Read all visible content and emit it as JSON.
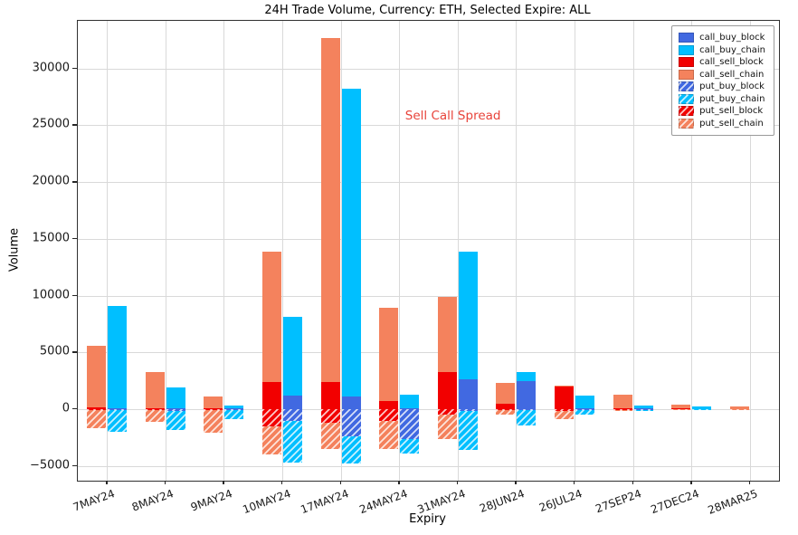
{
  "chart_data": {
    "type": "bar",
    "stacked": true,
    "title": "24H Trade Volume, Currency: ETH, Selected Expire: ALL",
    "xlabel": "Expiry",
    "ylabel": "Volume",
    "categories": [
      "7MAY24",
      "8MAY24",
      "9MAY24",
      "10MAY24",
      "17MAY24",
      "24MAY24",
      "31MAY24",
      "28JUN24",
      "26JUL24",
      "27SEP24",
      "27DEC24",
      "28MAR25"
    ],
    "yticks": [
      -5000,
      0,
      5000,
      10000,
      15000,
      20000,
      25000,
      30000
    ],
    "ylim": [
      -6300,
      34200
    ],
    "grid": true,
    "legend_position": "upper right",
    "series": [
      {
        "name": "call_buy_block",
        "color": "#4169e1",
        "hatch": false,
        "values": [
          100,
          100,
          50,
          1200,
          1100,
          100,
          2600,
          2500,
          100,
          50,
          0,
          0
        ]
      },
      {
        "name": "call_buy_chain",
        "color": "#00bfff",
        "hatch": false,
        "values": [
          9000,
          1800,
          250,
          6900,
          27100,
          1200,
          11300,
          800,
          1100,
          250,
          200,
          0
        ]
      },
      {
        "name": "call_sell_block",
        "color": "#f20000",
        "hatch": false,
        "values": [
          150,
          100,
          50,
          2400,
          2400,
          700,
          3300,
          500,
          2000,
          100,
          50,
          0
        ]
      },
      {
        "name": "call_sell_chain",
        "color": "#f4825d",
        "hatch": false,
        "values": [
          5450,
          3200,
          1050,
          11500,
          30300,
          8200,
          6600,
          1800,
          100,
          1200,
          350,
          250
        ]
      },
      {
        "name": "put_buy_block",
        "color": "#4169e1",
        "hatch": true,
        "values": [
          -100,
          -200,
          -100,
          -1000,
          -2400,
          -2600,
          -200,
          -100,
          -100,
          -50,
          0,
          0
        ]
      },
      {
        "name": "put_buy_chain",
        "color": "#00bfff",
        "hatch": true,
        "values": [
          -1900,
          -1600,
          -800,
          -3700,
          -2400,
          -1300,
          -3400,
          -1300,
          -400,
          -100,
          -100,
          0
        ]
      },
      {
        "name": "put_sell_block",
        "color": "#f20000",
        "hatch": true,
        "values": [
          -100,
          -100,
          -100,
          -1500,
          -1200,
          -1000,
          -500,
          -100,
          -200,
          -50,
          0,
          0
        ]
      },
      {
        "name": "put_sell_chain",
        "color": "#f4825d",
        "hatch": true,
        "values": [
          -1600,
          -1000,
          -2000,
          -2500,
          -2300,
          -2500,
          -2100,
          -400,
          -700,
          -150,
          -100,
          -50
        ]
      }
    ],
    "annotation": {
      "text": "Sell Call Spread",
      "color": "#e8433a",
      "x_index": 5.92,
      "y": 25800
    }
  }
}
